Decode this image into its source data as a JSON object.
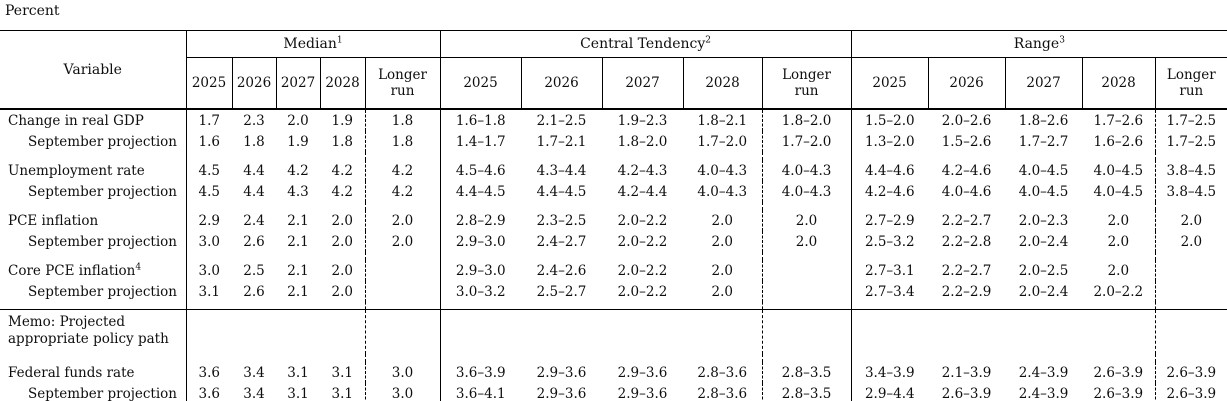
{
  "page": {
    "unit_label": "Percent"
  },
  "table": {
    "variable_header": "Variable",
    "sections": [
      {
        "label": "Median",
        "sup": "1",
        "years": [
          "2025",
          "2026",
          "2027",
          "2028",
          "Longer run"
        ]
      },
      {
        "label": "Central Tendency",
        "sup": "2",
        "years": [
          "2025",
          "2026",
          "2027",
          "2028",
          "Longer run"
        ]
      },
      {
        "label": "Range",
        "sup": "3",
        "years": [
          "2025",
          "2026",
          "2027",
          "2028",
          "Longer run"
        ]
      }
    ],
    "rows": [
      {
        "label": "Change in real GDP",
        "sup": "",
        "indent": false,
        "group_start": false,
        "median": [
          "1.7",
          "2.3",
          "2.0",
          "1.9",
          "1.8"
        ],
        "central_tendency": [
          "1.6–1.8",
          "2.1–2.5",
          "1.9–2.3",
          "1.8–2.1",
          "1.8–2.0"
        ],
        "range": [
          "1.5–2.0",
          "2.0–2.6",
          "1.8–2.6",
          "1.7–2.6",
          "1.7–2.5"
        ]
      },
      {
        "label": "September projection",
        "sup": "",
        "indent": true,
        "group_start": false,
        "median": [
          "1.6",
          "1.8",
          "1.9",
          "1.8",
          "1.8"
        ],
        "central_tendency": [
          "1.4–1.7",
          "1.7–2.1",
          "1.8–2.0",
          "1.7–2.0",
          "1.7–2.0"
        ],
        "range": [
          "1.3–2.0",
          "1.5–2.6",
          "1.7–2.7",
          "1.6–2.6",
          "1.7–2.5"
        ]
      },
      {
        "label": "Unemployment rate",
        "sup": "",
        "indent": false,
        "group_start": true,
        "median": [
          "4.5",
          "4.4",
          "4.2",
          "4.2",
          "4.2"
        ],
        "central_tendency": [
          "4.5–4.6",
          "4.3–4.4",
          "4.2–4.3",
          "4.0–4.3",
          "4.0–4.3"
        ],
        "range": [
          "4.4–4.6",
          "4.2–4.6",
          "4.0–4.5",
          "4.0–4.5",
          "3.8–4.5"
        ]
      },
      {
        "label": "September projection",
        "sup": "",
        "indent": true,
        "group_start": false,
        "median": [
          "4.5",
          "4.4",
          "4.3",
          "4.2",
          "4.2"
        ],
        "central_tendency": [
          "4.4–4.5",
          "4.4–4.5",
          "4.2–4.4",
          "4.0–4.3",
          "4.0–4.3"
        ],
        "range": [
          "4.2–4.6",
          "4.0–4.6",
          "4.0–4.5",
          "4.0–4.5",
          "3.8–4.5"
        ]
      },
      {
        "label": "PCE inflation",
        "sup": "",
        "indent": false,
        "group_start": true,
        "median": [
          "2.9",
          "2.4",
          "2.1",
          "2.0",
          "2.0"
        ],
        "central_tendency": [
          "2.8–2.9",
          "2.3–2.5",
          "2.0–2.2",
          "2.0",
          "2.0"
        ],
        "range": [
          "2.7–2.9",
          "2.2–2.7",
          "2.0–2.3",
          "2.0",
          "2.0"
        ]
      },
      {
        "label": "September projection",
        "sup": "",
        "indent": true,
        "group_start": false,
        "median": [
          "3.0",
          "2.6",
          "2.1",
          "2.0",
          "2.0"
        ],
        "central_tendency": [
          "2.9–3.0",
          "2.4–2.7",
          "2.0–2.2",
          "2.0",
          "2.0"
        ],
        "range": [
          "2.5–3.2",
          "2.2–2.8",
          "2.0–2.4",
          "2.0",
          "2.0"
        ]
      },
      {
        "label": "Core PCE inflation",
        "sup": "4",
        "indent": false,
        "group_start": true,
        "median": [
          "3.0",
          "2.5",
          "2.1",
          "2.0",
          ""
        ],
        "central_tendency": [
          "2.9–3.0",
          "2.4–2.6",
          "2.0–2.2",
          "2.0",
          ""
        ],
        "range": [
          "2.7–3.1",
          "2.2–2.7",
          "2.0–2.5",
          "2.0",
          ""
        ]
      },
      {
        "label": "September projection",
        "sup": "",
        "indent": true,
        "group_start": false,
        "median": [
          "3.1",
          "2.6",
          "2.1",
          "2.0",
          ""
        ],
        "central_tendency": [
          "3.0–3.2",
          "2.5–2.7",
          "2.0–2.2",
          "2.0",
          ""
        ],
        "range": [
          "2.7–3.4",
          "2.2–2.9",
          "2.0–2.4",
          "2.0–2.2",
          ""
        ]
      },
      {
        "type": "memo",
        "label_lines": [
          "Memo: Projected",
          "appropriate policy path"
        ]
      },
      {
        "label": "Federal funds rate",
        "sup": "",
        "indent": false,
        "group_start": true,
        "median": [
          "3.6",
          "3.4",
          "3.1",
          "3.1",
          "3.0"
        ],
        "central_tendency": [
          "3.6–3.9",
          "2.9–3.6",
          "2.9–3.6",
          "2.8–3.6",
          "2.8–3.5"
        ],
        "range": [
          "3.4–3.9",
          "2.1–3.9",
          "2.4–3.9",
          "2.6–3.9",
          "2.6–3.9"
        ]
      },
      {
        "label": "September projection",
        "sup": "",
        "indent": true,
        "group_start": false,
        "median": [
          "3.6",
          "3.4",
          "3.1",
          "3.1",
          "3.0"
        ],
        "central_tendency": [
          "3.6–4.1",
          "2.9–3.6",
          "2.9–3.6",
          "2.8–3.6",
          "2.8–3.5"
        ],
        "range": [
          "2.9–4.4",
          "2.6–3.9",
          "2.4–3.9",
          "2.6–3.9",
          "2.6–3.9"
        ]
      }
    ]
  }
}
